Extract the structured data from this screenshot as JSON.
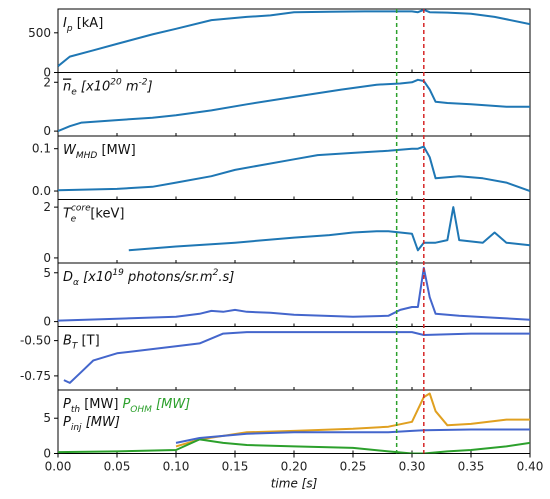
{
  "chart_data": {
    "type": "line",
    "xlabel": "time [s]",
    "xlim": [
      0.0,
      0.4
    ],
    "xticks": [
      "0.00",
      "0.05",
      "0.10",
      "0.15",
      "0.20",
      "0.25",
      "0.30",
      "0.35",
      "0.40"
    ],
    "xtick_values": [
      0.0,
      0.05,
      0.1,
      0.15,
      0.2,
      0.25,
      0.3,
      0.35,
      0.4
    ],
    "markers": [
      {
        "x": 0.287,
        "color": "#2ca02c",
        "style": "dashed"
      },
      {
        "x": 0.31,
        "color": "#d62728",
        "style": "dashed"
      }
    ],
    "panels": [
      {
        "label": "I",
        "sub": "p",
        "unit": " [kA]",
        "ylim": [
          0,
          800
        ],
        "yticks": [
          {
            "v": 0,
            "t": "0"
          },
          {
            "v": 500,
            "t": "500"
          }
        ],
        "series": [
          {
            "color": "#1f77b4",
            "x": [
              0,
              0.01,
              0.03,
              0.05,
              0.08,
              0.1,
              0.13,
              0.16,
              0.18,
              0.2,
              0.23,
              0.26,
              0.28,
              0.3,
              0.305,
              0.31,
              0.315,
              0.33,
              0.35,
              0.37,
              0.4
            ],
            "y": [
              80,
              200,
              280,
              360,
              480,
              550,
              660,
              700,
              720,
              760,
              765,
              770,
              770,
              770,
              760,
              790,
              760,
              755,
              740,
              700,
              610
            ]
          }
        ]
      },
      {
        "label": "n",
        "sub": "e",
        "overline": true,
        "unit": " [x10",
        "unit_sup": "20",
        "unit_tail": " m",
        "unit_sup2": "-2",
        "unit_end": "]",
        "ylim": [
          -0.2,
          2.4
        ],
        "yticks": [
          {
            "v": 0,
            "t": "0"
          },
          {
            "v": 2,
            "t": "2"
          }
        ],
        "series": [
          {
            "color": "#1f77b4",
            "x": [
              0,
              0.01,
              0.02,
              0.05,
              0.08,
              0.1,
              0.13,
              0.16,
              0.2,
              0.24,
              0.27,
              0.29,
              0.3,
              0.305,
              0.31,
              0.315,
              0.32,
              0.33,
              0.35,
              0.38,
              0.4
            ],
            "y": [
              0.0,
              0.2,
              0.35,
              0.45,
              0.55,
              0.65,
              0.85,
              1.1,
              1.4,
              1.7,
              1.9,
              1.95,
              2.0,
              2.1,
              2.05,
              1.7,
              1.2,
              1.15,
              1.1,
              1.0,
              1.0
            ]
          }
        ]
      },
      {
        "label": "W",
        "sub": "MHD",
        "unit": " [MW]",
        "ylim": [
          -0.02,
          0.13
        ],
        "yticks": [
          {
            "v": 0,
            "t": "0.0"
          },
          {
            "v": 0.1,
            "t": "0.1"
          }
        ],
        "series": [
          {
            "color": "#1f77b4",
            "x": [
              0,
              0.05,
              0.08,
              0.1,
              0.13,
              0.15,
              0.17,
              0.2,
              0.22,
              0.25,
              0.28,
              0.3,
              0.305,
              0.31,
              0.315,
              0.32,
              0.34,
              0.36,
              0.38,
              0.4
            ],
            "y": [
              0.002,
              0.005,
              0.01,
              0.02,
              0.035,
              0.05,
              0.06,
              0.075,
              0.085,
              0.09,
              0.095,
              0.1,
              0.1,
              0.105,
              0.08,
              0.03,
              0.035,
              0.03,
              0.02,
              0.0
            ]
          }
        ]
      },
      {
        "label": "T",
        "sub": "e",
        "sup": "core",
        "unit": " [keV]",
        "ylim": [
          -0.2,
          2.3
        ],
        "yticks": [
          {
            "v": 0,
            "t": "0"
          },
          {
            "v": 2,
            "t": "2"
          }
        ],
        "series": [
          {
            "color": "#1f77b4",
            "x": [
              0.06,
              0.1,
              0.15,
              0.2,
              0.23,
              0.25,
              0.27,
              0.28,
              0.29,
              0.3,
              0.305,
              0.31,
              0.32,
              0.33,
              0.335,
              0.34,
              0.36,
              0.37,
              0.38,
              0.4
            ],
            "y": [
              0.3,
              0.45,
              0.6,
              0.8,
              0.9,
              1.0,
              1.05,
              1.05,
              1.0,
              0.95,
              0.3,
              0.6,
              0.6,
              0.7,
              2.0,
              0.7,
              0.6,
              1.0,
              0.6,
              0.5
            ]
          }
        ]
      },
      {
        "label": "D",
        "sub": "α",
        "unit": " [x10",
        "unit_sup": "19",
        "unit_tail": " photons/sr.m",
        "unit_sup2": "2",
        "unit_end": ".s]",
        "ylim": [
          -0.5,
          6
        ],
        "yticks": [
          {
            "v": 0,
            "t": "0"
          },
          {
            "v": 5,
            "t": "5"
          }
        ],
        "series": [
          {
            "color": "#4466cc",
            "x": [
              0,
              0.05,
              0.1,
              0.12,
              0.13,
              0.14,
              0.15,
              0.16,
              0.18,
              0.2,
              0.25,
              0.28,
              0.29,
              0.3,
              0.305,
              0.31,
              0.315,
              0.32,
              0.34,
              0.37,
              0.4
            ],
            "y": [
              0.1,
              0.3,
              0.5,
              0.8,
              1.1,
              1.0,
              1.2,
              1.0,
              0.9,
              0.7,
              0.5,
              0.6,
              1.2,
              1.5,
              1.5,
              5.5,
              2.5,
              0.8,
              0.6,
              0.4,
              0.2
            ]
          }
        ]
      },
      {
        "label": "B",
        "sub": "T",
        "unit": " [T]",
        "ylim": [
          -0.85,
          -0.4
        ],
        "yticks": [
          {
            "v": -0.5,
            "t": "-0.50"
          },
          {
            "v": -0.75,
            "t": "-0.75"
          }
        ],
        "series": [
          {
            "color": "#4466cc",
            "x": [
              0.005,
              0.01,
              0.02,
              0.03,
              0.05,
              0.07,
              0.1,
              0.12,
              0.14,
              0.16,
              0.2,
              0.25,
              0.3,
              0.31,
              0.35,
              0.4
            ],
            "y": [
              -0.78,
              -0.8,
              -0.72,
              -0.64,
              -0.59,
              -0.57,
              -0.54,
              -0.52,
              -0.45,
              -0.44,
              -0.44,
              -0.44,
              -0.44,
              -0.46,
              -0.45,
              -0.45
            ]
          }
        ]
      },
      {
        "label": "P",
        "sub": "th",
        "unit": " [MW]",
        "label2": "P",
        "sub2": "OHM",
        "unit2": " [MW]",
        "label3": "P",
        "sub3": "inj",
        "unit3": " [MW]",
        "ylim": [
          0,
          9
        ],
        "yticks": [
          {
            "v": 0,
            "t": "0"
          },
          {
            "v": 5,
            "t": "5"
          }
        ],
        "series": [
          {
            "color": "#e0a020",
            "x": [
              0.1,
              0.12,
              0.14,
              0.16,
              0.2,
              0.25,
              0.28,
              0.3,
              0.31,
              0.315,
              0.32,
              0.33,
              0.35,
              0.38,
              0.4
            ],
            "y": [
              1.0,
              2.0,
              2.5,
              3.0,
              3.2,
              3.5,
              3.8,
              4.5,
              8.0,
              8.5,
              6.0,
              4.0,
              4.2,
              4.8,
              4.8
            ]
          },
          {
            "color": "#2ca02c",
            "x": [
              0,
              0.05,
              0.1,
              0.12,
              0.14,
              0.16,
              0.2,
              0.25,
              0.28,
              0.3,
              0.31,
              0.33,
              0.35,
              0.38,
              0.4
            ],
            "y": [
              0.2,
              0.3,
              0.5,
              2.0,
              1.5,
              1.2,
              1.0,
              0.8,
              0.3,
              0.0,
              0.0,
              0.3,
              0.5,
              1.0,
              1.5
            ]
          },
          {
            "color": "#4466cc",
            "x": [
              0.1,
              0.12,
              0.14,
              0.16,
              0.2,
              0.25,
              0.28,
              0.3,
              0.31,
              0.35,
              0.4
            ],
            "y": [
              1.5,
              2.2,
              2.5,
              2.8,
              3.0,
              3.0,
              3.0,
              3.2,
              3.3,
              3.4,
              3.4
            ]
          }
        ]
      }
    ]
  }
}
